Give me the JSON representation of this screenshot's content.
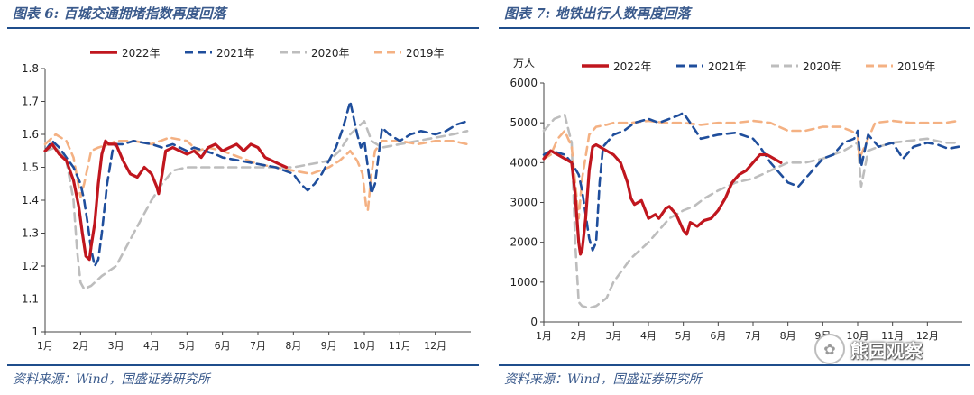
{
  "left": {
    "title": "图表 6: 百城交通拥堵指数再度回落",
    "source": "资料来源：Wind，国盛证券研究所"
  },
  "right": {
    "title": "图表 7: 地铁出行人数再度回落",
    "source": "资料来源：Wind，国盛证券研究所"
  },
  "watermark": {
    "text": "熊园观察",
    "icon": "watermark-logo-icon"
  },
  "colors": {
    "s2022": "#c0161e",
    "s2021": "#1f4e9c",
    "s2020": "#bdbdbd",
    "s2019": "#f4b183",
    "axis": "#444444",
    "title": "#3a5a8c"
  },
  "chart_data": [
    {
      "type": "line",
      "title": "百城交通拥堵指数再度回落",
      "ylabel": "",
      "ylim": [
        1.0,
        1.8
      ],
      "yticks": [
        "1",
        "1.1",
        "1.2",
        "1.3",
        "1.4",
        "1.5",
        "1.6",
        "1.7",
        "1.8"
      ],
      "xticks": [
        "1月",
        "2月",
        "3月",
        "4月",
        "5月",
        "6月",
        "7月",
        "8月",
        "9月",
        "10月",
        "11月",
        "12月"
      ],
      "xlim": [
        1,
        13
      ],
      "legend": "top",
      "series": [
        {
          "name": "2022年",
          "style": "solid",
          "x": [
            1.0,
            1.2,
            1.4,
            1.6,
            1.8,
            1.95,
            2.05,
            2.15,
            2.25,
            2.3,
            2.4,
            2.5,
            2.6,
            2.7,
            2.8,
            3.0,
            3.2,
            3.4,
            3.6,
            3.8,
            4.0,
            4.15,
            4.2,
            4.3,
            4.4,
            4.6,
            4.8,
            5.0,
            5.2,
            5.4,
            5.6,
            5.8,
            6.0,
            6.2,
            6.4,
            6.6,
            6.8,
            7.0,
            7.2,
            7.4,
            7.6,
            7.8
          ],
          "y": [
            1.55,
            1.57,
            1.54,
            1.52,
            1.46,
            1.38,
            1.3,
            1.23,
            1.22,
            1.26,
            1.33,
            1.45,
            1.54,
            1.58,
            1.57,
            1.57,
            1.52,
            1.48,
            1.47,
            1.5,
            1.48,
            1.44,
            1.42,
            1.48,
            1.55,
            1.56,
            1.55,
            1.54,
            1.55,
            1.53,
            1.56,
            1.57,
            1.55,
            1.56,
            1.57,
            1.55,
            1.57,
            1.56,
            1.53,
            1.52,
            1.51,
            1.5
          ]
        },
        {
          "name": "2021年",
          "style": "dash",
          "x": [
            1.0,
            1.2,
            1.4,
            1.6,
            1.8,
            2.0,
            2.1,
            2.2,
            2.3,
            2.4,
            2.5,
            2.6,
            2.75,
            2.9,
            3.0,
            3.2,
            3.5,
            4.0,
            4.3,
            4.6,
            5.0,
            5.2,
            5.5,
            5.8,
            6.0,
            6.5,
            7.0,
            7.5,
            8.0,
            8.2,
            8.4,
            8.6,
            8.8,
            9.0,
            9.2,
            9.4,
            9.6,
            9.7,
            9.8,
            9.9,
            10.0,
            10.1,
            10.2,
            10.3,
            10.5,
            10.7,
            11.0,
            11.3,
            11.6,
            12.0,
            12.3,
            12.6,
            12.9
          ],
          "y": [
            1.55,
            1.58,
            1.56,
            1.53,
            1.5,
            1.45,
            1.4,
            1.33,
            1.25,
            1.2,
            1.22,
            1.3,
            1.45,
            1.55,
            1.57,
            1.57,
            1.58,
            1.57,
            1.56,
            1.57,
            1.55,
            1.56,
            1.55,
            1.54,
            1.53,
            1.52,
            1.51,
            1.5,
            1.48,
            1.45,
            1.43,
            1.45,
            1.48,
            1.52,
            1.56,
            1.62,
            1.7,
            1.65,
            1.6,
            1.56,
            1.58,
            1.5,
            1.42,
            1.45,
            1.62,
            1.6,
            1.58,
            1.6,
            1.61,
            1.6,
            1.61,
            1.63,
            1.64
          ]
        },
        {
          "name": "2020年",
          "style": "dash",
          "x": [
            1.0,
            1.3,
            1.6,
            1.8,
            1.9,
            2.0,
            2.1,
            2.3,
            2.6,
            3.0,
            3.5,
            4.0,
            4.3,
            4.6,
            5.0,
            5.5,
            6.0,
            6.5,
            7.0,
            7.5,
            8.0,
            8.5,
            9.0,
            9.3,
            9.6,
            9.8,
            10.0,
            10.2,
            10.5,
            11.0,
            11.5,
            12.0,
            12.5,
            12.9
          ],
          "y": [
            1.55,
            1.56,
            1.52,
            1.4,
            1.25,
            1.15,
            1.13,
            1.14,
            1.17,
            1.2,
            1.3,
            1.4,
            1.45,
            1.49,
            1.5,
            1.5,
            1.5,
            1.5,
            1.5,
            1.5,
            1.5,
            1.51,
            1.52,
            1.55,
            1.6,
            1.62,
            1.64,
            1.58,
            1.56,
            1.57,
            1.58,
            1.59,
            1.6,
            1.61
          ]
        },
        {
          "name": "2019年",
          "style": "dash",
          "x": [
            1.0,
            1.3,
            1.6,
            1.8,
            1.9,
            2.0,
            2.1,
            2.3,
            2.5,
            2.8,
            3.0,
            3.5,
            4.0,
            4.5,
            5.0,
            5.3,
            5.6,
            6.0,
            6.5,
            7.0,
            7.5,
            8.0,
            8.5,
            9.0,
            9.3,
            9.6,
            9.8,
            9.95,
            10.05,
            10.1,
            10.2,
            10.3,
            10.5,
            11.0,
            11.5,
            12.0,
            12.5,
            12.9
          ],
          "y": [
            1.57,
            1.6,
            1.58,
            1.53,
            1.47,
            1.41,
            1.45,
            1.55,
            1.56,
            1.57,
            1.58,
            1.58,
            1.57,
            1.59,
            1.58,
            1.55,
            1.56,
            1.55,
            1.53,
            1.51,
            1.5,
            1.49,
            1.48,
            1.5,
            1.52,
            1.55,
            1.52,
            1.48,
            1.38,
            1.37,
            1.48,
            1.55,
            1.58,
            1.58,
            1.57,
            1.58,
            1.58,
            1.57
          ]
        }
      ]
    },
    {
      "type": "line",
      "title": "地铁出行人数再度回落",
      "ylabel": "万人",
      "ylim": [
        0,
        6000
      ],
      "yticks": [
        "0",
        "1000",
        "2000",
        "3000",
        "4000",
        "5000",
        "6000"
      ],
      "xticks": [
        "1月",
        "2月",
        "3月",
        "4月",
        "5月",
        "6月",
        "7月",
        "8月",
        "9月",
        "10月",
        "11月",
        "12月"
      ],
      "xlim": [
        1,
        13
      ],
      "legend": "top",
      "series": [
        {
          "name": "2022年",
          "style": "solid",
          "x": [
            1.0,
            1.2,
            1.4,
            1.6,
            1.8,
            1.9,
            2.0,
            2.05,
            2.1,
            2.2,
            2.3,
            2.4,
            2.5,
            2.6,
            2.8,
            3.0,
            3.2,
            3.4,
            3.5,
            3.6,
            3.7,
            3.8,
            4.0,
            4.2,
            4.3,
            4.5,
            4.6,
            4.8,
            5.0,
            5.1,
            5.2,
            5.4,
            5.6,
            5.8,
            6.0,
            6.2,
            6.4,
            6.6,
            6.8,
            7.0,
            7.2,
            7.4,
            7.6,
            7.8
          ],
          "y": [
            4100,
            4300,
            4200,
            4100,
            4000,
            3200,
            2000,
            1700,
            1800,
            2600,
            3800,
            4400,
            4450,
            4400,
            4300,
            4200,
            4000,
            3500,
            3100,
            2950,
            3000,
            3050,
            2600,
            2700,
            2600,
            2850,
            2900,
            2700,
            2300,
            2200,
            2500,
            2400,
            2550,
            2600,
            2800,
            3100,
            3500,
            3700,
            3800,
            4000,
            4200,
            4200,
            4100,
            4000
          ]
        },
        {
          "name": "2021年",
          "style": "dash",
          "x": [
            1.0,
            1.2,
            1.4,
            1.6,
            1.8,
            2.0,
            2.1,
            2.2,
            2.3,
            2.4,
            2.5,
            2.6,
            2.7,
            2.9,
            3.0,
            3.3,
            3.6,
            4.0,
            4.3,
            4.6,
            4.9,
            5.0,
            5.2,
            5.5,
            6.0,
            6.5,
            7.0,
            7.2,
            7.5,
            7.8,
            8.0,
            8.3,
            8.6,
            9.0,
            9.3,
            9.6,
            9.9,
            10.0,
            10.1,
            10.3,
            10.6,
            11.0,
            11.3,
            11.6,
            12.0,
            12.3,
            12.6,
            12.9
          ],
          "y": [
            4200,
            4300,
            4250,
            4200,
            4000,
            3700,
            3300,
            2700,
            2100,
            1800,
            2000,
            3500,
            4400,
            4600,
            4700,
            4800,
            5000,
            5100,
            5000,
            5100,
            5200,
            5250,
            5000,
            4600,
            4700,
            4750,
            4600,
            4400,
            4000,
            3700,
            3500,
            3400,
            3700,
            4100,
            4200,
            4500,
            4600,
            4800,
            3900,
            4700,
            4400,
            4500,
            4100,
            4400,
            4500,
            4450,
            4350,
            4400
          ]
        },
        {
          "name": "2020年",
          "style": "dash",
          "x": [
            1.0,
            1.3,
            1.6,
            1.8,
            1.9,
            2.0,
            2.1,
            2.3,
            2.5,
            2.8,
            3.0,
            3.5,
            4.0,
            4.3,
            4.6,
            5.0,
            5.3,
            5.6,
            6.0,
            6.5,
            7.0,
            7.5,
            8.0,
            8.5,
            9.0,
            9.3,
            9.6,
            9.8,
            10.0,
            10.1,
            10.3,
            10.6,
            11.0,
            11.5,
            12.0,
            12.5,
            12.9
          ],
          "y": [
            4800,
            5100,
            5200,
            4500,
            2000,
            500,
            400,
            350,
            400,
            600,
            1000,
            1600,
            2000,
            2300,
            2600,
            2800,
            2900,
            3100,
            3300,
            3500,
            3600,
            3800,
            4000,
            4000,
            4100,
            4200,
            4300,
            4400,
            4500,
            3400,
            4300,
            4400,
            4500,
            4550,
            4600,
            4500,
            4500
          ]
        },
        {
          "name": "2019年",
          "style": "dash",
          "x": [
            1.0,
            1.2,
            1.4,
            1.6,
            1.8,
            1.9,
            2.0,
            2.1,
            2.3,
            2.5,
            2.8,
            3.0,
            3.5,
            4.0,
            4.5,
            5.0,
            5.5,
            6.0,
            6.5,
            7.0,
            7.5,
            8.0,
            8.5,
            9.0,
            9.5,
            9.8,
            10.0,
            10.05,
            10.2,
            10.5,
            11.0,
            11.5,
            12.0,
            12.5,
            12.9
          ],
          "y": [
            4100,
            4200,
            4600,
            4800,
            4400,
            3500,
            2600,
            3600,
            4700,
            4900,
            4950,
            5000,
            5000,
            5050,
            5000,
            5000,
            4950,
            5000,
            5000,
            5050,
            5000,
            4800,
            4800,
            4900,
            4900,
            4800,
            4700,
            4100,
            4400,
            5000,
            5050,
            5000,
            5000,
            5000,
            5050
          ]
        }
      ]
    }
  ]
}
